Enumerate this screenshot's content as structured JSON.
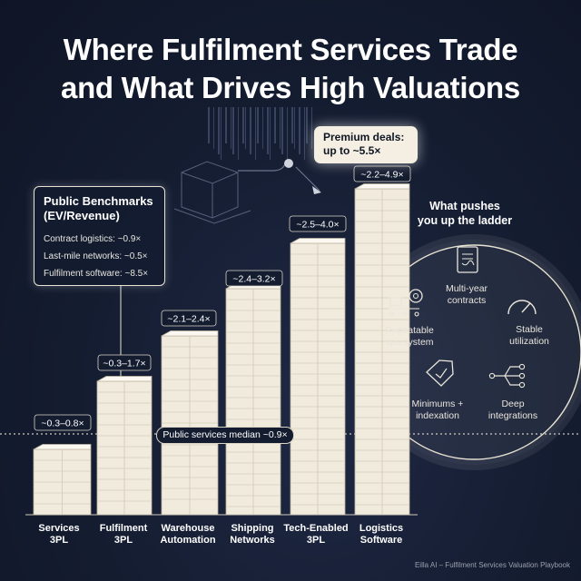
{
  "header": {
    "title_line1": "Where Fulfilment Services Trade",
    "title_line2": "and What Drives High Valuations"
  },
  "chart_data": {
    "type": "bar",
    "categories": [
      [
        "Services",
        "3PL"
      ],
      [
        "Fulfilment",
        "3PL"
      ],
      [
        "Warehouse",
        "Automation"
      ],
      [
        "Shipping",
        "Networks"
      ],
      [
        "Tech-Enabled",
        "3PL"
      ],
      [
        "Logistics",
        "Software"
      ]
    ],
    "range_labels": [
      "~0.3–0.8×",
      "~0.3–1.7×",
      "~2.1–2.4×",
      "~2.4–3.2×",
      "~2.5–4.0×",
      "~2.2–4.9×"
    ],
    "unit": "EV/Revenue",
    "median": {
      "value": 0.9,
      "label": "Public services median ~0.9×"
    }
  },
  "benchmarks": {
    "title_line1": "Public Benchmarks",
    "title_line2": "(EV/Revenue)",
    "rows": [
      "Contract logistics: ~0.9×",
      "Last-mile networks: ~0.5×",
      "Fulfilment software: ~8.5×"
    ]
  },
  "premium": {
    "line1": "Premium deals:",
    "line2": "up to ~5.5×"
  },
  "ladder": {
    "title_line1": "What pushes",
    "title_line2": "you up the ladder",
    "drivers": [
      {
        "line1": "Multi-year",
        "line2": "contracts",
        "icon": "contract-icon"
      },
      {
        "line1": "Repeatable",
        "line2": "ops system",
        "icon": "ops-gear-icon"
      },
      {
        "line1": "Stable",
        "line2": "utilization",
        "icon": "gauge-icon"
      },
      {
        "line1": "Minimums +",
        "line2": "indexation",
        "icon": "price-tag-icon"
      },
      {
        "line1": "Deep",
        "line2": "integrations",
        "icon": "integration-icon"
      }
    ]
  },
  "footer": "Eilla AI – Fulfilment Services Valuation Playbook",
  "colors": {
    "background": "#141c30",
    "tower_face": "#f1ebdd",
    "tower_side": "#d7cfbd",
    "ink": "#1a2236"
  }
}
